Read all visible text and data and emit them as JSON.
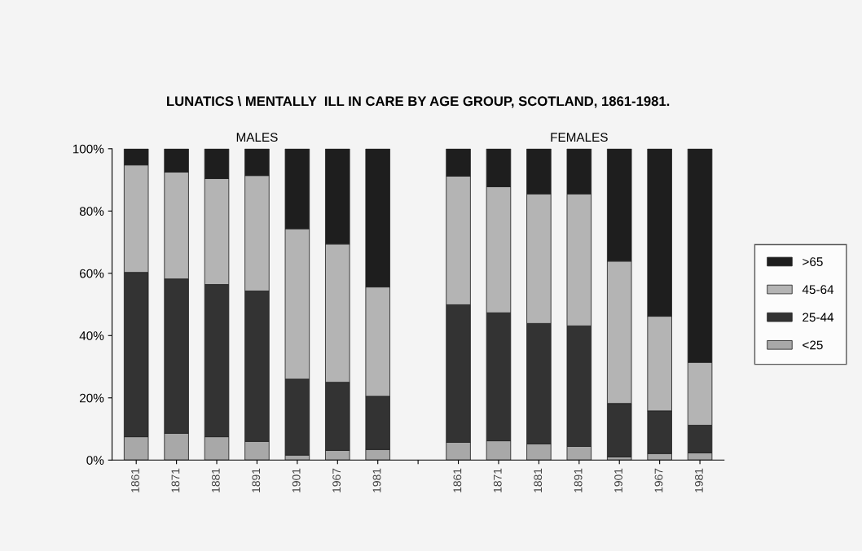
{
  "chart_data": {
    "type": "bar",
    "title": "LUNATICS \\ MENTALLY  ILL IN CARE BY AGE GROUP, SCOTLAND, 1861-1981.",
    "annotations": [
      "MALES",
      "FEMALES"
    ],
    "categories": [
      "1861",
      "1871",
      "1881",
      "1891",
      "1901",
      "1967",
      "1981",
      null,
      "1861",
      "1871",
      "1881",
      "1891",
      "1901",
      "1967",
      "1981"
    ],
    "stacked": true,
    "series": [
      {
        "name": "<25",
        "color": "#a8a8a8",
        "values": [
          7.5,
          8.6,
          7.5,
          6,
          1.6,
          3.1,
          3.4,
          null,
          5.7,
          6.2,
          5.2,
          4.4,
          1,
          2.1,
          2.3
        ]
      },
      {
        "name": "25-44",
        "color": "#333333",
        "values": [
          52.8,
          49.6,
          48.9,
          48.3,
          24.4,
          21.9,
          17.1,
          null,
          44.2,
          41.1,
          38.7,
          38.7,
          17.2,
          13.7,
          8.9
        ]
      },
      {
        "name": "45-64",
        "color": "#b4b4b4",
        "values": [
          34.5,
          34.3,
          34,
          37.1,
          48.3,
          44.4,
          35.1,
          null,
          41.3,
          40.5,
          41.6,
          42.4,
          45.7,
          30.4,
          20.2
        ]
      },
      {
        "name": ">65",
        "color": "#1e1e1e",
        "values": [
          5.2,
          7.5,
          9.6,
          8.6,
          25.7,
          30.6,
          44.4,
          null,
          8.8,
          12.2,
          14.5,
          14.5,
          36.1,
          53.8,
          68.6
        ]
      }
    ],
    "ylim": [
      0,
      100
    ],
    "yticks": [
      {
        "value": 0,
        "label": "0%"
      },
      {
        "value": 20,
        "label": "20%"
      },
      {
        "value": 40,
        "label": "40%"
      },
      {
        "value": 60,
        "label": "60%"
      },
      {
        "value": 80,
        "label": "80%"
      },
      {
        "value": 100,
        "label": "100%"
      }
    ],
    "legend": "right"
  }
}
